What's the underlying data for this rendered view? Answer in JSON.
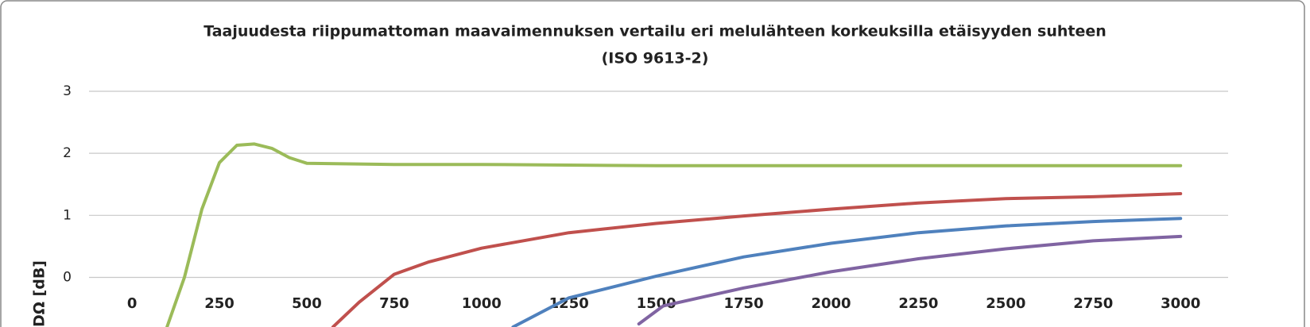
{
  "chart_data": {
    "type": "line",
    "title": [
      "Taajuudesta riippumattoman maavaimennuksen vertailu eri melulähteen korkeuksilla etäisyyden suhteen",
      "(ISO 9613-2)"
    ],
    "y_label": "DΩ [dB]",
    "xlim": [
      -123,
      3136
    ],
    "xticks": [
      0,
      250,
      500,
      750,
      1000,
      1250,
      1500,
      1750,
      2000,
      2250,
      2500,
      2750,
      3000
    ],
    "ylim": [
      -0.8,
      3
    ],
    "yticks": [
      0,
      1,
      2,
      3
    ],
    "grid": true,
    "series": [
      {
        "color": "#9bbb59",
        "x": [
          100,
          150,
          200,
          250,
          300,
          350,
          400,
          450,
          500,
          750,
          1000,
          1500,
          2000,
          2500,
          3000
        ],
        "values": [
          -0.8,
          0,
          1.1,
          1.85,
          2.13,
          2.15,
          2.08,
          1.93,
          1.84,
          1.82,
          1.82,
          1.8,
          1.8,
          1.8,
          1.8
        ]
      },
      {
        "color": "#c0504d",
        "x": [
          575,
          650,
          750,
          850,
          1000,
          1250,
          1500,
          1750,
          2000,
          2250,
          2500,
          2750,
          3000
        ],
        "values": [
          -0.8,
          -0.4,
          0.05,
          0.25,
          0.47,
          0.72,
          0.87,
          0.99,
          1.1,
          1.2,
          1.27,
          1.3,
          1.35
        ]
      },
      {
        "color": "#4f81bd",
        "x": [
          1090,
          1250,
          1500,
          1750,
          2000,
          2250,
          2500,
          2750,
          3000
        ],
        "values": [
          -0.8,
          -0.33,
          0.02,
          0.33,
          0.55,
          0.72,
          0.83,
          0.9,
          0.95
        ]
      },
      {
        "color": "#8064a2",
        "x": [
          1450,
          1520,
          1750,
          2000,
          2250,
          2500,
          2750,
          3000
        ],
        "values": [
          -0.75,
          -0.46,
          -0.17,
          0.09,
          0.3,
          0.46,
          0.59,
          0.66
        ]
      }
    ]
  }
}
